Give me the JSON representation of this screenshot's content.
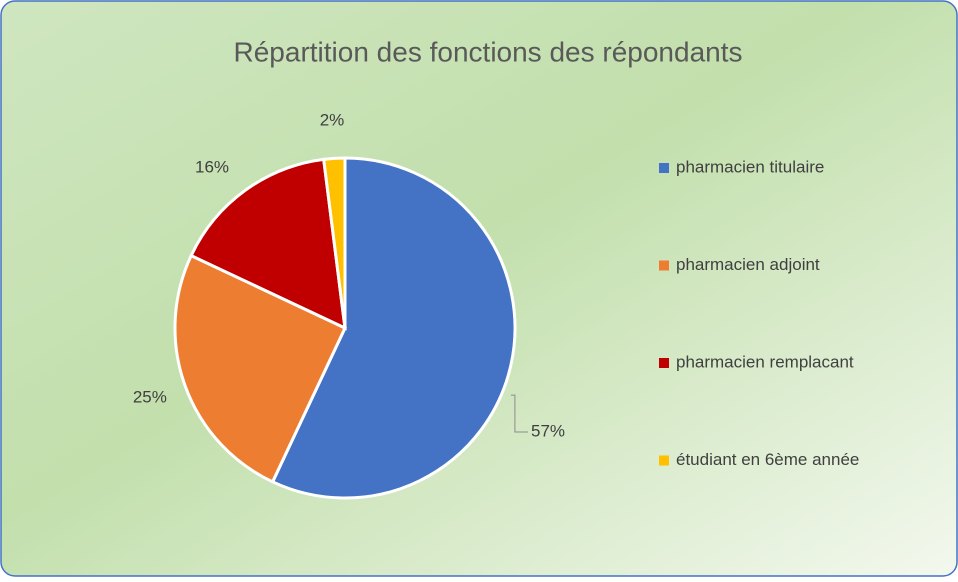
{
  "chart_data": {
    "type": "pie",
    "title": "Répartition des fonctions des répondants",
    "categories": [
      "pharmacien titulaire",
      "pharmacien adjoint",
      "pharmacien remplacant",
      "étudiant en 6ème année"
    ],
    "values": [
      57,
      25,
      16,
      2
    ],
    "value_labels": [
      "57%",
      "25%",
      "16%",
      "2%"
    ],
    "colors": [
      "#4472c4",
      "#ed7d31",
      "#c00000",
      "#ffc000"
    ],
    "legend": "right"
  }
}
